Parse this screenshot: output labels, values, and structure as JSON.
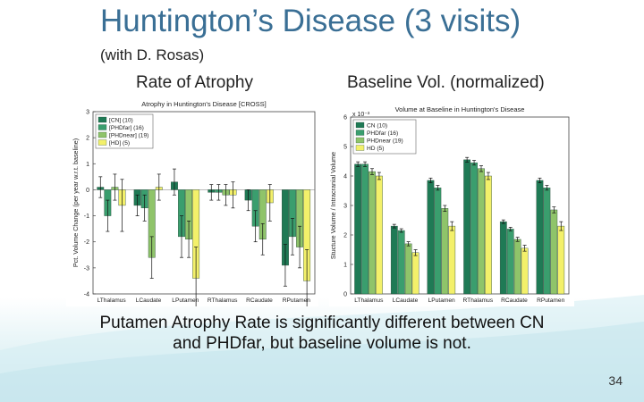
{
  "slide": {
    "title": "Huntington’s Disease (3 visits)",
    "subtitle": "(with D. Rosas)",
    "left_heading": "Rate of Atrophy",
    "right_heading": "Baseline Vol. (normalized)",
    "caption_line1": "Putamen Atrophy Rate is significantly different between CN",
    "caption_line2": "and PHDfar, but baseline volume is not.",
    "page_number": "34"
  },
  "colors": {
    "title": "#3a6f95",
    "series": [
      "#1f7a55",
      "#3a9e6e",
      "#8fc46a",
      "#f3f06a"
    ]
  },
  "chart_data": [
    {
      "type": "bar",
      "title": "Atrophy in Huntington's Disease [CROSS]",
      "ylabel": "Pct. Volume Change (per year w.r.t. baseline)",
      "xlabel": "",
      "ylim": [
        -4,
        3
      ],
      "yticks": [
        "3",
        "2",
        "1",
        "0",
        "-1",
        "-2",
        "-3",
        "-4"
      ],
      "categories": [
        "LThalamus",
        "LCaudate",
        "LPutamen",
        "RThalamus",
        "RCaudate",
        "RPutamen"
      ],
      "legend": {
        "position": "top-left",
        "entries": [
          "[CN] (10)",
          "[PHDfar] (16)",
          "[PHDnear] (19)",
          "[HD] (5)"
        ]
      },
      "series": [
        {
          "name": "[CN] (10)",
          "values": [
            0.1,
            -0.6,
            0.3,
            -0.1,
            -0.4,
            -2.9
          ],
          "errors": [
            0.4,
            0.4,
            0.5,
            0.3,
            0.4,
            0.8
          ]
        },
        {
          "name": "[PHDfar] (16)",
          "values": [
            -1.0,
            -0.7,
            -1.8,
            -0.1,
            -1.4,
            -1.8
          ],
          "errors": [
            0.6,
            0.5,
            0.8,
            0.3,
            0.6,
            0.7
          ]
        },
        {
          "name": "[PHDnear] (19)",
          "values": [
            0.1,
            -2.6,
            -1.9,
            -0.2,
            -1.9,
            -2.2
          ],
          "errors": [
            0.5,
            0.8,
            0.7,
            0.4,
            0.6,
            0.8
          ]
        },
        {
          "name": "[HD] (5)",
          "values": [
            -0.6,
            0.1,
            -3.4,
            -0.2,
            -0.5,
            -3.5
          ],
          "errors": [
            1.0,
            0.5,
            1.2,
            0.5,
            0.7,
            1.2
          ]
        }
      ]
    },
    {
      "type": "bar",
      "title": "Volume at Baseline in Huntington's Disease",
      "ylabel": "Stucture Volume / Intracranial Volume",
      "xlabel": "",
      "exponent_label": "x 10⁻³",
      "ylim": [
        0,
        6
      ],
      "yticks": [
        "6",
        "5",
        "4",
        "3",
        "2",
        "1",
        "0"
      ],
      "categories": [
        "LThalamus",
        "LCaudate",
        "LPutamen",
        "RThalamus",
        "RCaudate",
        "RPutamen"
      ],
      "legend": {
        "position": "top-left",
        "entries": [
          "CN (10)",
          "PHDfar (16)",
          "PHDnear (19)",
          "HD (5)"
        ]
      },
      "series": [
        {
          "name": "CN (10)",
          "values": [
            4.4,
            2.3,
            3.85,
            4.55,
            2.45,
            3.85
          ],
          "errors": [
            0.08,
            0.06,
            0.08,
            0.08,
            0.06,
            0.08
          ]
        },
        {
          "name": "PHDfar (16)",
          "values": [
            4.4,
            2.15,
            3.6,
            4.45,
            2.2,
            3.6
          ],
          "errors": [
            0.08,
            0.06,
            0.08,
            0.08,
            0.06,
            0.08
          ]
        },
        {
          "name": "PHDnear (19)",
          "values": [
            4.15,
            1.7,
            2.9,
            4.25,
            1.85,
            2.85
          ],
          "errors": [
            0.1,
            0.07,
            0.1,
            0.1,
            0.07,
            0.1
          ]
        },
        {
          "name": "HD (5)",
          "values": [
            4.0,
            1.4,
            2.3,
            4.0,
            1.55,
            2.3
          ],
          "errors": [
            0.12,
            0.1,
            0.15,
            0.12,
            0.1,
            0.15
          ]
        }
      ]
    }
  ]
}
